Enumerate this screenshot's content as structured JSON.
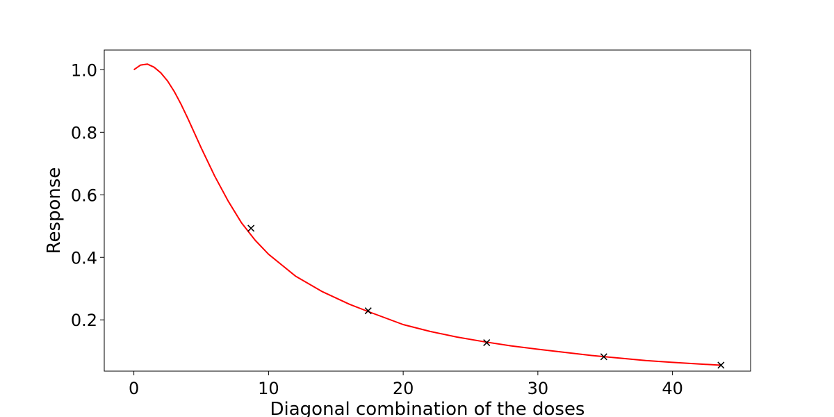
{
  "chart_data": {
    "type": "line",
    "title": "",
    "xlabel": "Diagonal combination of the doses",
    "ylabel": "Response",
    "xlim": [
      -2.2,
      45.8
    ],
    "ylim": [
      0.036,
      1.063
    ],
    "xticks": [
      0,
      10,
      20,
      30,
      40
    ],
    "xtick_labels": [
      "0",
      "10",
      "20",
      "30",
      "40"
    ],
    "yticks": [
      0.2,
      0.4,
      0.6,
      0.8,
      1.0
    ],
    "ytick_labels": [
      "0.2",
      "0.4",
      "0.6",
      "0.8",
      "1.0"
    ],
    "grid": false,
    "series": [
      {
        "kind": "line",
        "color": "#ff0000",
        "x": [
          0,
          0.5,
          1,
          1.5,
          2,
          2.5,
          3,
          3.5,
          4,
          5,
          6,
          7,
          8,
          9,
          10,
          12,
          14,
          16,
          17.5,
          20,
          22,
          24,
          26,
          28,
          30,
          32,
          34,
          36,
          38,
          40,
          42,
          43.6
        ],
        "values": [
          1.0,
          1.015,
          1.018,
          1.008,
          0.99,
          0.964,
          0.93,
          0.89,
          0.845,
          0.75,
          0.66,
          0.58,
          0.51,
          0.455,
          0.41,
          0.34,
          0.29,
          0.25,
          0.225,
          0.185,
          0.163,
          0.145,
          0.13,
          0.117,
          0.106,
          0.096,
          0.086,
          0.078,
          0.07,
          0.064,
          0.059,
          0.055
        ]
      },
      {
        "kind": "scatter",
        "marker": "x",
        "color": "#000000",
        "x": [
          8.7,
          17.4,
          26.2,
          34.9,
          43.6
        ],
        "values": [
          0.493,
          0.229,
          0.127,
          0.082,
          0.055
        ]
      }
    ]
  }
}
